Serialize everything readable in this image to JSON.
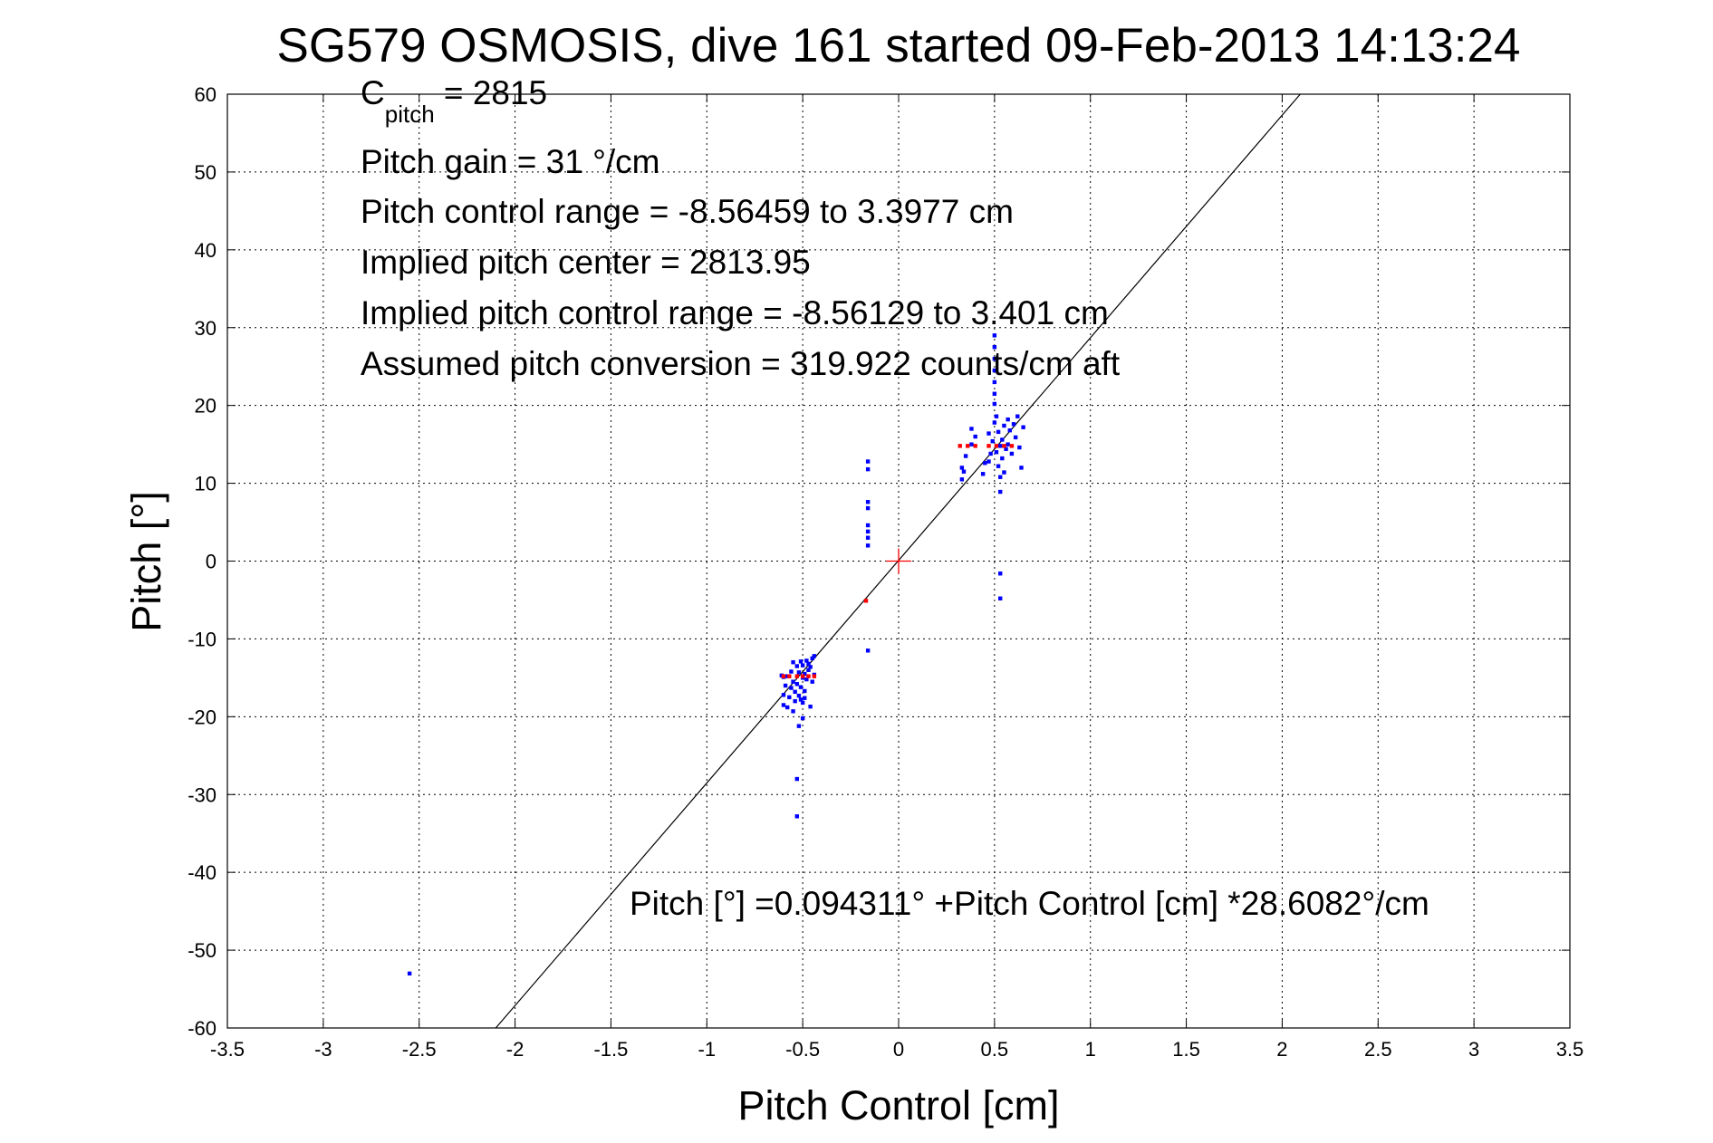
{
  "chart_data": {
    "type": "scatter",
    "title": "SG579 OSMOSIS, dive 161 started 09-Feb-2013 14:13:24",
    "xlabel": "Pitch Control [cm]",
    "ylabel": "Pitch [°]",
    "xlim": [
      -3.5,
      3.5
    ],
    "ylim": [
      -60,
      60
    ],
    "xticks": [
      "-3.5",
      "-3",
      "-2.5",
      "-2",
      "-1.5",
      "-1",
      "-0.5",
      "0",
      "0.5",
      "1",
      "1.5",
      "2",
      "2.5",
      "3",
      "3.5"
    ],
    "yticks": [
      "60",
      "50",
      "40",
      "30",
      "20",
      "10",
      "0",
      "-10",
      "-20",
      "-30",
      "-40",
      "-50",
      "-60"
    ],
    "grid": true,
    "annotations": {
      "c_pitch_main": "C",
      "c_pitch_sub": "pitch",
      "c_pitch_value": " = 2815",
      "pitch_gain": "Pitch gain = 31 °/cm",
      "pitch_control_range": "Pitch control range = -8.56459 to 3.3977 cm",
      "implied_center": "Implied pitch center = 2813.95",
      "implied_range": "Implied pitch control range = -8.56129 to 3.401 cm",
      "assumed_conversion": "Assumed pitch conversion = 319.922 counts/cm aft",
      "fit_equation": "Pitch [°] =0.094311° +Pitch Control [cm] *28.6082°/cm"
    },
    "fit_line": {
      "intercept": 0.094311,
      "slope": 28.6082,
      "color": "#000000"
    },
    "center_marker": {
      "x": 0,
      "y": 0,
      "color": "#ff0000"
    },
    "series": [
      {
        "color": "#0000ff",
        "points": [
          [
            -2.55,
            -53
          ],
          [
            -0.53,
            -28
          ],
          [
            -0.53,
            -32.8
          ],
          [
            -0.52,
            -21.2
          ],
          [
            -0.5,
            -20.2
          ],
          [
            -0.6,
            -18.5
          ],
          [
            -0.6,
            -17.2
          ],
          [
            -0.59,
            -16
          ],
          [
            -0.58,
            -18.8
          ],
          [
            -0.57,
            -17.5
          ],
          [
            -0.56,
            -16.3
          ],
          [
            -0.56,
            -14.2
          ],
          [
            -0.55,
            -19.3
          ],
          [
            -0.55,
            -15.5
          ],
          [
            -0.54,
            -18
          ],
          [
            -0.54,
            -16.8
          ],
          [
            -0.53,
            -13.5
          ],
          [
            -0.53,
            -15.8
          ],
          [
            -0.52,
            -17.3
          ],
          [
            -0.52,
            -14.3
          ],
          [
            -0.51,
            -12.9
          ],
          [
            -0.51,
            -16.2
          ],
          [
            -0.5,
            -18.2
          ],
          [
            -0.5,
            -15
          ],
          [
            -0.5,
            -13.4
          ],
          [
            -0.49,
            -14.5
          ],
          [
            -0.49,
            -16.7
          ],
          [
            -0.48,
            -12.8
          ],
          [
            -0.48,
            -15.2
          ],
          [
            -0.47,
            -14
          ],
          [
            -0.47,
            -13.2
          ],
          [
            -0.46,
            -13.6
          ],
          [
            -0.46,
            -18.7
          ],
          [
            -0.45,
            -12.5
          ],
          [
            -0.45,
            -15.5
          ],
          [
            -0.44,
            -12.2
          ],
          [
            -0.44,
            -14.6
          ],
          [
            -0.61,
            -14.7
          ],
          [
            -0.6,
            -14.9
          ],
          [
            -0.58,
            -14.8
          ],
          [
            -0.55,
            -13
          ],
          [
            -0.51,
            -17.8
          ],
          [
            -0.49,
            -17.6
          ],
          [
            -0.16,
            -11.5
          ],
          [
            -0.16,
            2
          ],
          [
            -0.16,
            3
          ],
          [
            -0.16,
            3.8
          ],
          [
            -0.16,
            4.6
          ],
          [
            -0.16,
            6.8
          ],
          [
            -0.16,
            7.6
          ],
          [
            -0.16,
            11.8
          ],
          [
            -0.16,
            12.8
          ],
          [
            0.53,
            -4.8
          ],
          [
            0.53,
            -1.6
          ],
          [
            0.53,
            8.9
          ],
          [
            0.5,
            29
          ],
          [
            0.5,
            27.5
          ],
          [
            0.5,
            26
          ],
          [
            0.5,
            24.5
          ],
          [
            0.5,
            23
          ],
          [
            0.5,
            21.5
          ],
          [
            0.5,
            20.2
          ],
          [
            0.33,
            10.5
          ],
          [
            0.33,
            12
          ],
          [
            0.34,
            11.5
          ],
          [
            0.35,
            13.5
          ],
          [
            0.38,
            15
          ],
          [
            0.38,
            17
          ],
          [
            0.4,
            16
          ],
          [
            0.44,
            11.2
          ],
          [
            0.45,
            12.6
          ],
          [
            0.47,
            16.4
          ],
          [
            0.48,
            13.8
          ],
          [
            0.49,
            15.4
          ],
          [
            0.5,
            17.8
          ],
          [
            0.51,
            14
          ],
          [
            0.52,
            12.2
          ],
          [
            0.52,
            16.6
          ],
          [
            0.53,
            14.8
          ],
          [
            0.54,
            13.2
          ],
          [
            0.54,
            15.6
          ],
          [
            0.55,
            17.4
          ],
          [
            0.55,
            11.4
          ],
          [
            0.56,
            14.4
          ],
          [
            0.57,
            18.2
          ],
          [
            0.57,
            15
          ],
          [
            0.58,
            16.8
          ],
          [
            0.59,
            13.8
          ],
          [
            0.6,
            17.6
          ],
          [
            0.61,
            15.9
          ],
          [
            0.62,
            18.6
          ],
          [
            0.63,
            14.6
          ],
          [
            0.64,
            12
          ],
          [
            0.65,
            17.2
          ],
          [
            0.51,
            18.6
          ],
          [
            0.53,
            10.8
          ],
          [
            0.47,
            12.8
          ]
        ]
      },
      {
        "color": "#ff0000",
        "points": [
          [
            -0.17,
            -5.1
          ],
          [
            -0.6,
            -14.8
          ],
          [
            -0.57,
            -14.8
          ],
          [
            -0.53,
            -14.8
          ],
          [
            -0.5,
            -14.8
          ],
          [
            -0.47,
            -14.8
          ],
          [
            -0.44,
            -14.8
          ],
          [
            0.32,
            14.8
          ],
          [
            0.36,
            14.8
          ],
          [
            0.4,
            14.8
          ],
          [
            0.47,
            14.8
          ],
          [
            0.51,
            14.8
          ],
          [
            0.55,
            14.8
          ],
          [
            0.59,
            14.8
          ]
        ]
      }
    ]
  }
}
